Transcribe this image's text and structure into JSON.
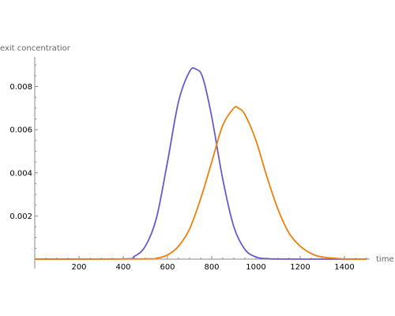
{
  "chart_data": {
    "type": "line",
    "xlabel": "time",
    "ylabel": "exit concentratior",
    "xlim": [
      0,
      1500
    ],
    "ylim": [
      0,
      0.0093
    ],
    "x_ticks": [
      200,
      400,
      600,
      800,
      1000,
      1200,
      1400
    ],
    "x_tick_labels": [
      "200",
      "400",
      "600",
      "800",
      "1000",
      "1200",
      "1400"
    ],
    "y_ticks": [
      0.002,
      0.004,
      0.006,
      0.008
    ],
    "y_tick_labels": [
      "0.002",
      "0.004",
      "0.006",
      "0.008"
    ],
    "grid": false,
    "legend": "none",
    "series": [
      {
        "color": "#6a5acd",
        "x": [
          0,
          400,
          450,
          500,
          550,
          600,
          650,
          700,
          730,
          760,
          800,
          850,
          900,
          950,
          1000,
          1050,
          1100,
          1200,
          1500
        ],
        "y": [
          0,
          1e-05,
          0.00013,
          0.0006,
          0.0019,
          0.0045,
          0.0073,
          0.0087,
          0.0088,
          0.0084,
          0.0066,
          0.0037,
          0.0015,
          0.00045,
          0.0001,
          2e-05,
          5e-06,
          0,
          0
        ]
      },
      {
        "color": "#f07f09",
        "x": [
          0,
          500,
          550,
          600,
          650,
          700,
          750,
          800,
          850,
          900,
          920,
          950,
          1000,
          1050,
          1100,
          1150,
          1200,
          1250,
          1300,
          1400,
          1500
        ],
        "y": [
          0,
          1e-05,
          4e-05,
          0.00019,
          0.0006,
          0.0014,
          0.0028,
          0.0045,
          0.0062,
          0.007,
          0.007,
          0.0067,
          0.0055,
          0.0038,
          0.0023,
          0.0012,
          0.0006,
          0.00026,
          0.0001,
          1e-05,
          0
        ]
      }
    ]
  },
  "colors": {
    "axis": "#888888",
    "tick_text": "#000000",
    "label_text": "#666666"
  }
}
